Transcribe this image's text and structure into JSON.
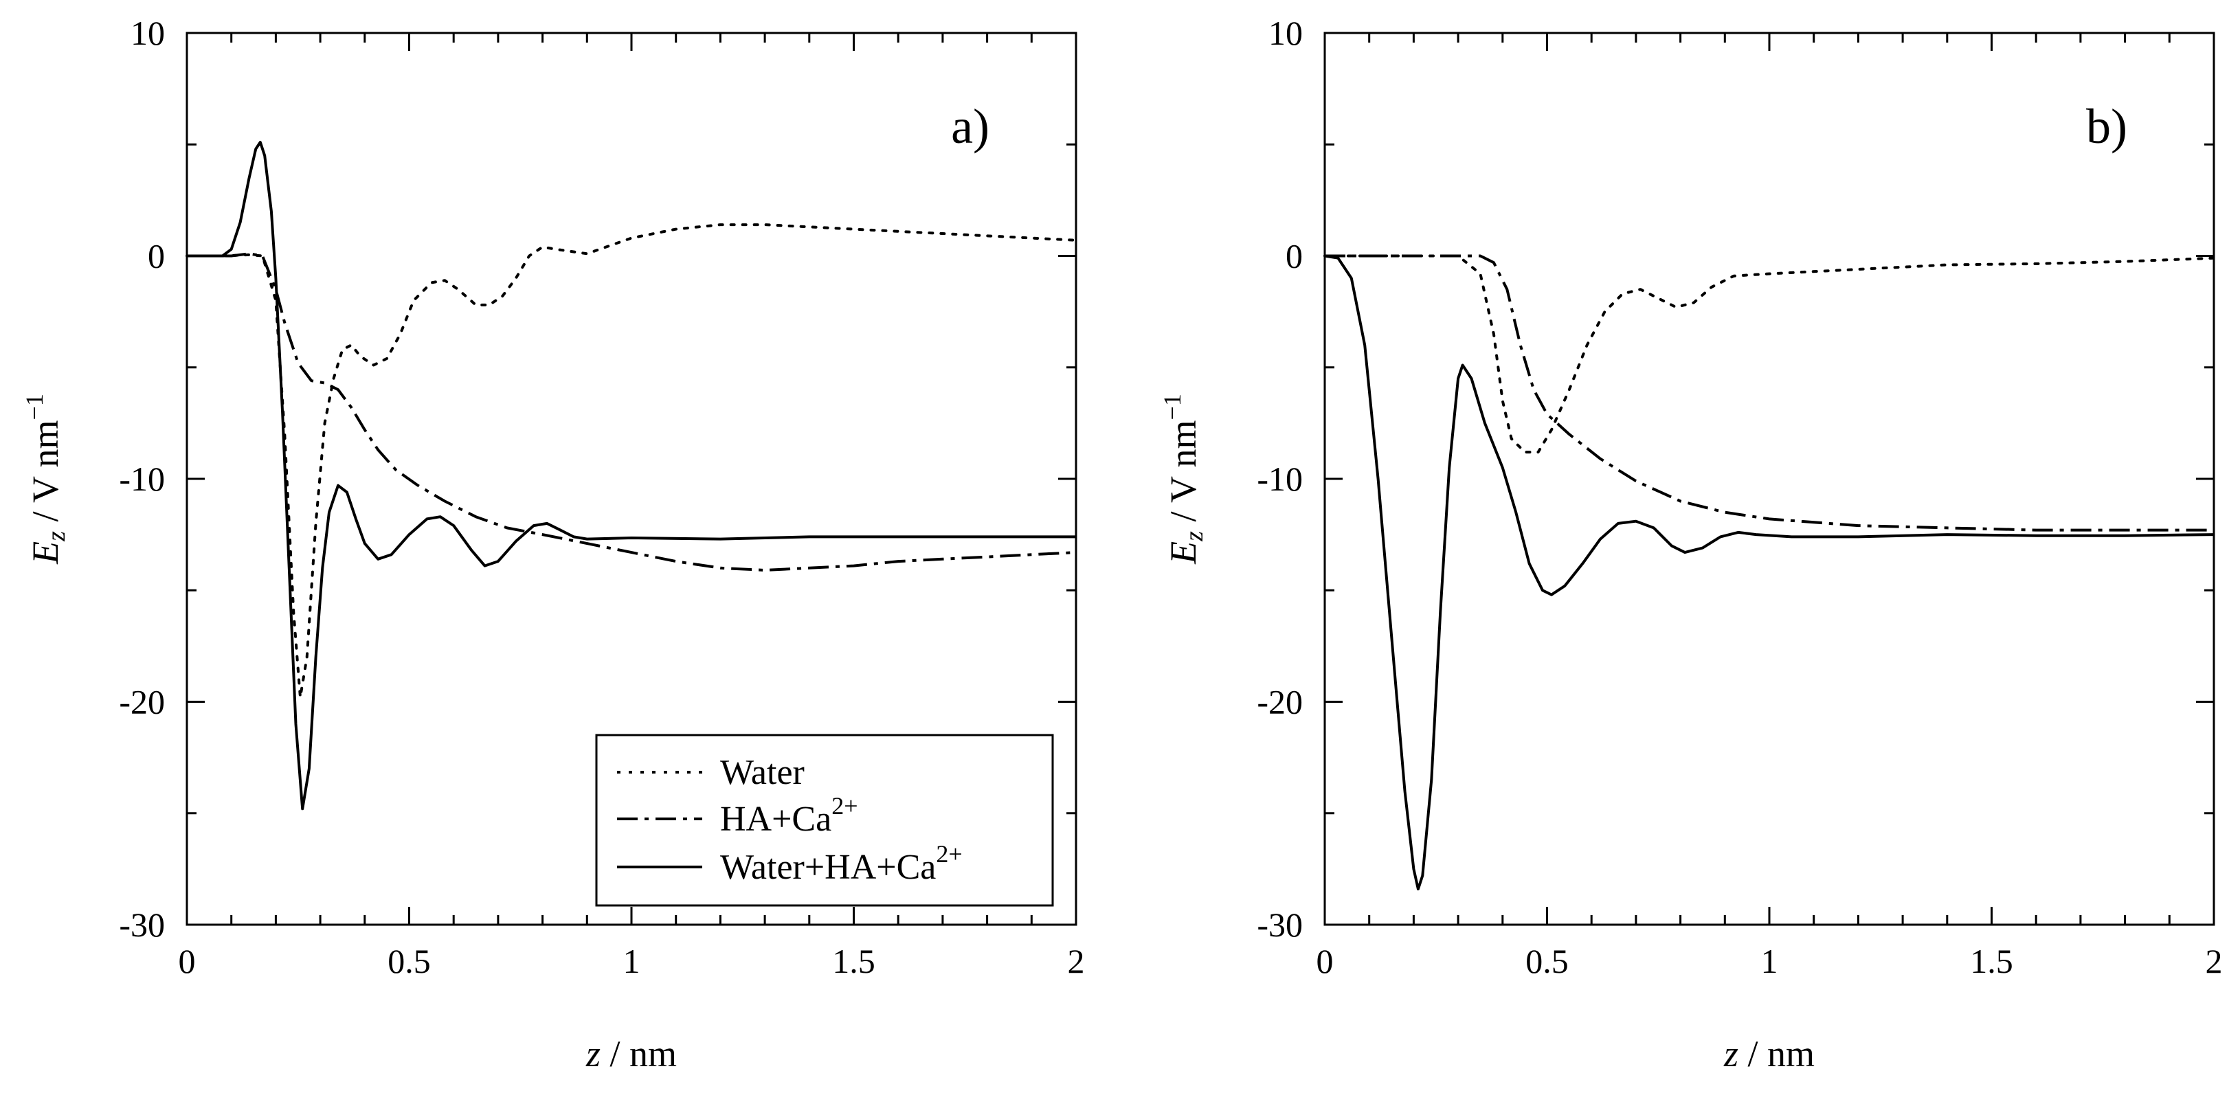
{
  "chart_data": [
    {
      "type": "line",
      "panel_label": "a)",
      "xlabel_var": "z",
      "xlabel_unit": " / nm",
      "ylabel_var": "E",
      "ylabel_sub": "z",
      "ylabel_unit": " / V nm",
      "ylabel_exp": "−1",
      "xlim": [
        0,
        2
      ],
      "ylim": [
        -30,
        10
      ],
      "xticks": [
        0,
        0.5,
        1,
        1.5,
        2
      ],
      "xtick_labels": [
        "0",
        "0.5",
        "1",
        "1.5",
        "2"
      ],
      "yticks": [
        10,
        0,
        -10,
        -20,
        -30
      ],
      "ytick_labels": [
        "10",
        "0",
        "-10",
        "-20",
        "-30"
      ],
      "legend": {
        "placement": "bottom-right",
        "entries": [
          {
            "label": "Water",
            "sup": ""
          },
          {
            "label": "HA+Ca",
            "sup": "2+"
          },
          {
            "label": "Water+HA+Ca",
            "sup": "2+"
          }
        ]
      },
      "series": [
        {
          "name": "Water",
          "style": "dotted",
          "points": [
            [
              0,
              0
            ],
            [
              0.08,
              0
            ],
            [
              0.14,
              0.05
            ],
            [
              0.17,
              0
            ],
            [
              0.2,
              -2
            ],
            [
              0.22,
              -8
            ],
            [
              0.24,
              -16
            ],
            [
              0.255,
              -19.8
            ],
            [
              0.27,
              -18
            ],
            [
              0.29,
              -12
            ],
            [
              0.31,
              -7.5
            ],
            [
              0.33,
              -5.5
            ],
            [
              0.35,
              -4.2
            ],
            [
              0.37,
              -4
            ],
            [
              0.39,
              -4.5
            ],
            [
              0.42,
              -4.9
            ],
            [
              0.45,
              -4.6
            ],
            [
              0.48,
              -3.5
            ],
            [
              0.51,
              -2
            ],
            [
              0.55,
              -1.2
            ],
            [
              0.58,
              -1.1
            ],
            [
              0.61,
              -1.5
            ],
            [
              0.65,
              -2.2
            ],
            [
              0.68,
              -2.2
            ],
            [
              0.71,
              -1.8
            ],
            [
              0.74,
              -1
            ],
            [
              0.77,
              0
            ],
            [
              0.8,
              0.4
            ],
            [
              0.83,
              0.3
            ],
            [
              0.9,
              0.1
            ],
            [
              1.0,
              0.8
            ],
            [
              1.1,
              1.2
            ],
            [
              1.2,
              1.4
            ],
            [
              1.3,
              1.4
            ],
            [
              1.4,
              1.3
            ],
            [
              1.5,
              1.2
            ],
            [
              1.6,
              1.1
            ],
            [
              1.7,
              1.0
            ],
            [
              1.8,
              0.9
            ],
            [
              1.9,
              0.8
            ],
            [
              2.0,
              0.7
            ]
          ]
        },
        {
          "name": "HA+Ca2+",
          "style": "dashdot",
          "points": [
            [
              0,
              0
            ],
            [
              0.1,
              0
            ],
            [
              0.14,
              0.1
            ],
            [
              0.17,
              0
            ],
            [
              0.2,
              -1.5
            ],
            [
              0.22,
              -3
            ],
            [
              0.25,
              -4.8
            ],
            [
              0.28,
              -5.6
            ],
            [
              0.31,
              -5.7
            ],
            [
              0.34,
              -6
            ],
            [
              0.37,
              -6.8
            ],
            [
              0.4,
              -7.8
            ],
            [
              0.43,
              -8.7
            ],
            [
              0.47,
              -9.6
            ],
            [
              0.52,
              -10.3
            ],
            [
              0.58,
              -11
            ],
            [
              0.65,
              -11.7
            ],
            [
              0.72,
              -12.2
            ],
            [
              0.8,
              -12.5
            ],
            [
              0.9,
              -12.9
            ],
            [
              1.0,
              -13.3
            ],
            [
              1.1,
              -13.7
            ],
            [
              1.2,
              -14
            ],
            [
              1.3,
              -14.1
            ],
            [
              1.4,
              -14.0
            ],
            [
              1.5,
              -13.9
            ],
            [
              1.6,
              -13.7
            ],
            [
              1.7,
              -13.6
            ],
            [
              1.8,
              -13.5
            ],
            [
              1.9,
              -13.4
            ],
            [
              2.0,
              -13.3
            ]
          ]
        },
        {
          "name": "Water+HA+Ca2+",
          "style": "solid",
          "points": [
            [
              0,
              0
            ],
            [
              0.08,
              0
            ],
            [
              0.1,
              0.3
            ],
            [
              0.12,
              1.5
            ],
            [
              0.14,
              3.5
            ],
            [
              0.155,
              4.8
            ],
            [
              0.165,
              5.1
            ],
            [
              0.175,
              4.5
            ],
            [
              0.19,
              2
            ],
            [
              0.2,
              -1
            ],
            [
              0.215,
              -7
            ],
            [
              0.23,
              -14
            ],
            [
              0.245,
              -21
            ],
            [
              0.26,
              -24.8
            ],
            [
              0.275,
              -23
            ],
            [
              0.29,
              -18
            ],
            [
              0.305,
              -14
            ],
            [
              0.32,
              -11.5
            ],
            [
              0.34,
              -10.3
            ],
            [
              0.36,
              -10.6
            ],
            [
              0.38,
              -11.8
            ],
            [
              0.4,
              -12.9
            ],
            [
              0.43,
              -13.6
            ],
            [
              0.46,
              -13.4
            ],
            [
              0.5,
              -12.5
            ],
            [
              0.54,
              -11.8
            ],
            [
              0.57,
              -11.7
            ],
            [
              0.6,
              -12.1
            ],
            [
              0.64,
              -13.2
            ],
            [
              0.67,
              -13.9
            ],
            [
              0.7,
              -13.7
            ],
            [
              0.74,
              -12.8
            ],
            [
              0.78,
              -12.1
            ],
            [
              0.81,
              -12
            ],
            [
              0.84,
              -12.3
            ],
            [
              0.87,
              -12.6
            ],
            [
              0.9,
              -12.7
            ],
            [
              1.0,
              -12.65
            ],
            [
              1.2,
              -12.7
            ],
            [
              1.4,
              -12.6
            ],
            [
              1.6,
              -12.6
            ],
            [
              1.8,
              -12.6
            ],
            [
              2.0,
              -12.6
            ]
          ]
        }
      ]
    },
    {
      "type": "line",
      "panel_label": "b)",
      "xlabel_var": "z",
      "xlabel_unit": " / nm",
      "ylabel_var": "E",
      "ylabel_sub": "z",
      "ylabel_unit": " / V nm",
      "ylabel_exp": "−1",
      "xlim": [
        0,
        2
      ],
      "ylim": [
        -30,
        10
      ],
      "xticks": [
        0,
        0.5,
        1,
        1.5,
        2
      ],
      "xtick_labels": [
        "0",
        "0.5",
        "1",
        "1.5",
        "2"
      ],
      "yticks": [
        10,
        0,
        -10,
        -20,
        -30
      ],
      "ytick_labels": [
        "10",
        "0",
        "-10",
        "-20",
        "-30"
      ],
      "series": [
        {
          "name": "Water",
          "style": "dotted",
          "points": [
            [
              0,
              0
            ],
            [
              0.3,
              0
            ],
            [
              0.35,
              -0.8
            ],
            [
              0.38,
              -3.5
            ],
            [
              0.4,
              -6.5
            ],
            [
              0.42,
              -8.2
            ],
            [
              0.45,
              -8.8
            ],
            [
              0.48,
              -8.8
            ],
            [
              0.51,
              -7.8
            ],
            [
              0.55,
              -6
            ],
            [
              0.59,
              -4
            ],
            [
              0.63,
              -2.5
            ],
            [
              0.67,
              -1.7
            ],
            [
              0.71,
              -1.5
            ],
            [
              0.75,
              -1.9
            ],
            [
              0.79,
              -2.3
            ],
            [
              0.83,
              -2.1
            ],
            [
              0.87,
              -1.4
            ],
            [
              0.92,
              -0.9
            ],
            [
              1.0,
              -0.8
            ],
            [
              1.2,
              -0.6
            ],
            [
              1.4,
              -0.4
            ],
            [
              1.6,
              -0.35
            ],
            [
              1.8,
              -0.25
            ],
            [
              2.0,
              -0.1
            ]
          ]
        },
        {
          "name": "HA+Ca2+",
          "style": "dashdot",
          "points": [
            [
              0,
              0
            ],
            [
              0.35,
              0
            ],
            [
              0.38,
              -0.3
            ],
            [
              0.41,
              -1.5
            ],
            [
              0.44,
              -4
            ],
            [
              0.47,
              -6
            ],
            [
              0.5,
              -7.1
            ],
            [
              0.55,
              -8
            ],
            [
              0.62,
              -9.1
            ],
            [
              0.7,
              -10.1
            ],
            [
              0.8,
              -11
            ],
            [
              0.9,
              -11.5
            ],
            [
              1.0,
              -11.8
            ],
            [
              1.2,
              -12.1
            ],
            [
              1.4,
              -12.2
            ],
            [
              1.6,
              -12.3
            ],
            [
              1.8,
              -12.3
            ],
            [
              2.0,
              -12.3
            ]
          ]
        },
        {
          "name": "Water+HA+Ca2+",
          "style": "solid",
          "points": [
            [
              0,
              0
            ],
            [
              0.03,
              -0.1
            ],
            [
              0.06,
              -1
            ],
            [
              0.09,
              -4
            ],
            [
              0.12,
              -10
            ],
            [
              0.15,
              -17
            ],
            [
              0.18,
              -24
            ],
            [
              0.2,
              -27.5
            ],
            [
              0.21,
              -28.4
            ],
            [
              0.22,
              -27.8
            ],
            [
              0.24,
              -23.5
            ],
            [
              0.26,
              -16
            ],
            [
              0.28,
              -9.5
            ],
            [
              0.3,
              -5.5
            ],
            [
              0.31,
              -4.9
            ],
            [
              0.33,
              -5.5
            ],
            [
              0.36,
              -7.5
            ],
            [
              0.4,
              -9.5
            ],
            [
              0.43,
              -11.5
            ],
            [
              0.46,
              -13.8
            ],
            [
              0.49,
              -15
            ],
            [
              0.51,
              -15.2
            ],
            [
              0.54,
              -14.8
            ],
            [
              0.58,
              -13.8
            ],
            [
              0.62,
              -12.7
            ],
            [
              0.66,
              -12
            ],
            [
              0.7,
              -11.9
            ],
            [
              0.74,
              -12.2
            ],
            [
              0.78,
              -13
            ],
            [
              0.81,
              -13.3
            ],
            [
              0.85,
              -13.1
            ],
            [
              0.89,
              -12.6
            ],
            [
              0.93,
              -12.4
            ],
            [
              0.97,
              -12.5
            ],
            [
              1.05,
              -12.6
            ],
            [
              1.2,
              -12.6
            ],
            [
              1.4,
              -12.5
            ],
            [
              1.6,
              -12.55
            ],
            [
              1.8,
              -12.55
            ],
            [
              2.0,
              -12.5
            ]
          ]
        }
      ]
    }
  ]
}
